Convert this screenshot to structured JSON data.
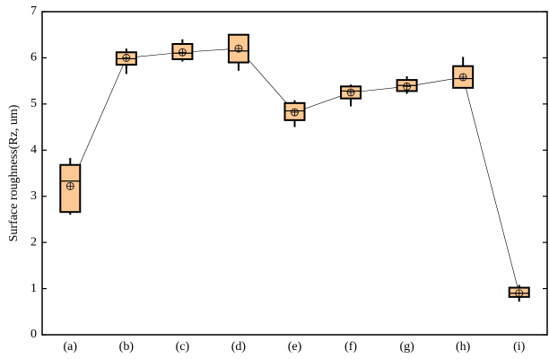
{
  "chart_data": {
    "type": "box",
    "y_label": "Surface roughness(Rz, um)",
    "categories": [
      "(a)",
      "(b)",
      "(c)",
      "(d)",
      "(e)",
      "(f)",
      "(g)",
      "(h)",
      "(i)"
    ],
    "whisker_low": [
      2.6,
      5.65,
      5.92,
      5.72,
      4.5,
      4.95,
      5.22,
      5.35,
      0.72
    ],
    "q1": [
      2.66,
      5.85,
      5.97,
      5.9,
      4.65,
      5.12,
      5.28,
      5.35,
      0.82
    ],
    "median": [
      3.33,
      5.98,
      6.1,
      6.15,
      4.85,
      5.28,
      5.4,
      5.55,
      0.9
    ],
    "q3": [
      3.68,
      6.12,
      6.3,
      6.5,
      5.02,
      5.38,
      5.52,
      5.82,
      1.02
    ],
    "whisker_high": [
      3.83,
      6.2,
      6.4,
      6.5,
      5.08,
      5.42,
      5.6,
      6.02,
      1.08
    ],
    "mean": [
      3.22,
      6.0,
      6.12,
      6.2,
      4.82,
      5.25,
      5.38,
      5.58,
      0.9
    ],
    "color": "#fcc995",
    "ylim": [
      0,
      7
    ],
    "yticks": [
      0,
      1,
      2,
      3,
      4,
      5,
      6,
      7
    ]
  }
}
